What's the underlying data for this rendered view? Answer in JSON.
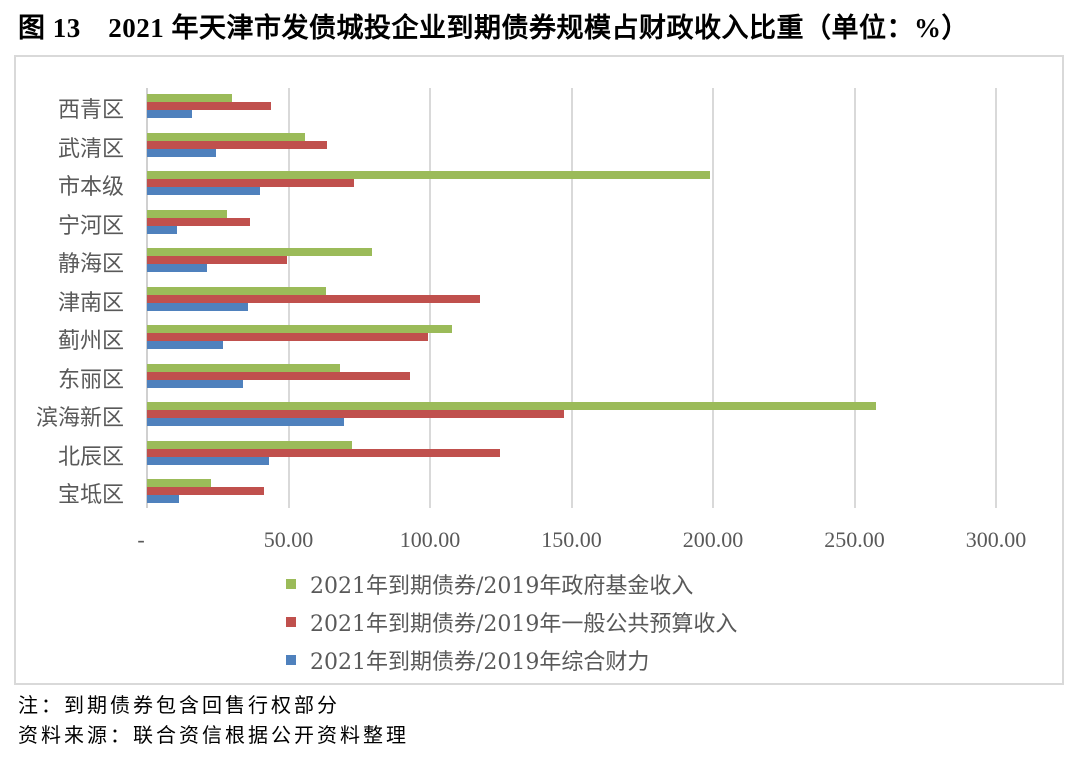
{
  "title": "图 13　2021 年天津市发债城投企业到期债券规模占财政收入比重（单位：%）",
  "chart_data": {
    "type": "bar",
    "orientation": "horizontal",
    "title": "2021年天津市发债城投企业到期债券规模占财政收入比重（单位：%）",
    "xlabel": "",
    "ylabel": "",
    "xlim": [
      0,
      300
    ],
    "grid": true,
    "legend_position": "bottom",
    "categories": [
      "西青区",
      "武清区",
      "市本级",
      "宁河区",
      "静海区",
      "津南区",
      "蓟州区",
      "东丽区",
      "滨海新区",
      "北辰区",
      "宝坻区"
    ],
    "tick_labels": [
      "-",
      "50.00",
      "100.00",
      "150.00",
      "200.00",
      "250.00",
      "300.00"
    ],
    "ticks": [
      0,
      50,
      100,
      150,
      200,
      250,
      300
    ],
    "series": [
      {
        "name": "2021年到期债券/2019年政府基金收入",
        "color": "#9BBB59",
        "values": [
          30.0,
          56.0,
          199.0,
          28.3,
          79.4,
          63.1,
          107.7,
          68.3,
          257.6,
          72.3,
          22.5
        ]
      },
      {
        "name": "2021年到期债券/2019年一般公共预算收入",
        "color": "#C0504D",
        "values": [
          43.8,
          63.6,
          73.0,
          36.4,
          49.4,
          117.7,
          99.2,
          92.8,
          147.5,
          124.8,
          41.3
        ]
      },
      {
        "name": "2021年到期债券/2019年综合财力",
        "color": "#4F81BD",
        "values": [
          15.9,
          24.4,
          40.0,
          10.6,
          21.1,
          35.8,
          26.7,
          33.8,
          69.7,
          43.2,
          11.2
        ]
      }
    ]
  },
  "notes": {
    "note": "注：到期债券包含回售行权部分",
    "source": "资料来源：联合资信根据公开资料整理"
  }
}
